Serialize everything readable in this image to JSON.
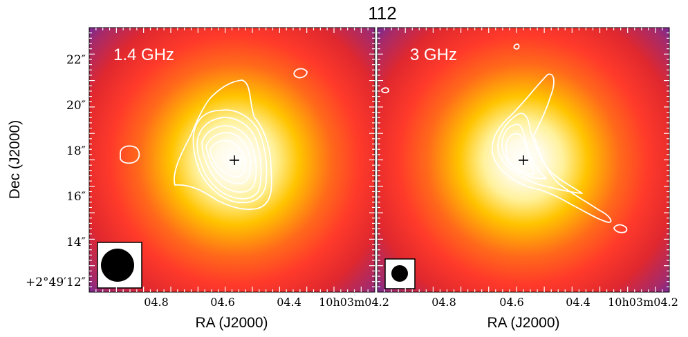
{
  "title": "112",
  "xlabel": "RA (J2000)",
  "ylabel": "Dec (J2000)",
  "chart_data": {
    "type": "heatmap",
    "title": "112",
    "panels": [
      {
        "label": "1.4 GHz",
        "beam": "large circular beam",
        "xlabel": "RA (J2000)",
        "ylabel": "Dec (J2000)"
      },
      {
        "label": "3 GHz",
        "beam": "small circular beam",
        "xlabel": "RA (J2000)",
        "ylabel": ""
      }
    ],
    "x_ticks": [
      "04.8",
      "04.6",
      "04.4",
      "10h03m04.2"
    ],
    "y_ticks": [
      "22″",
      "20″",
      "18″",
      "16″",
      "14″",
      "+2°49′12″"
    ],
    "marker": "+",
    "colormap": [
      "#ffffff",
      "#fff19a",
      "#ffc400",
      "#ff6a1a",
      "#ff3a2a",
      "#e0282e",
      "#a62a6a",
      "#6a2aa0"
    ],
    "contour_color": "#ffffff"
  }
}
